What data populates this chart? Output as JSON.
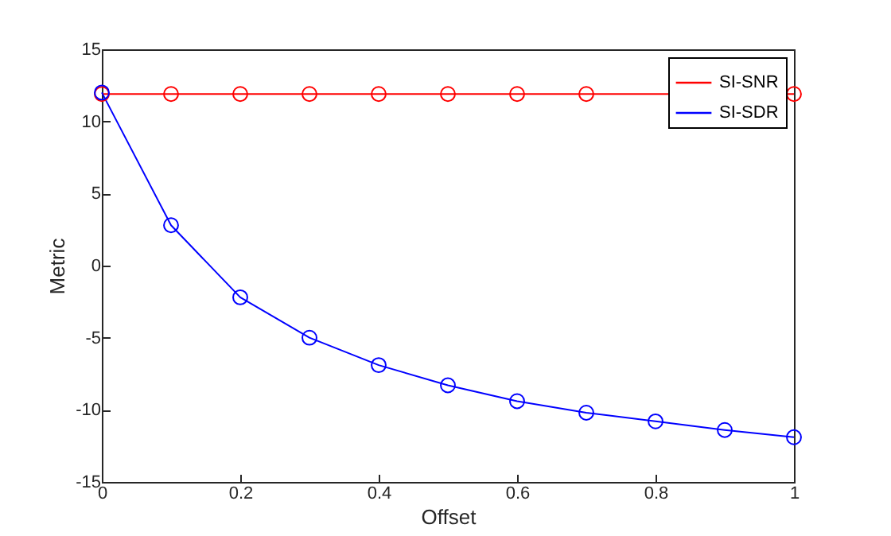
{
  "chart_data": {
    "type": "line",
    "xlabel": "Offset",
    "ylabel": "Metric",
    "x": [
      0,
      0.1,
      0.2,
      0.3,
      0.4,
      0.5,
      0.6,
      0.7,
      0.8,
      0.9,
      1
    ],
    "series": [
      {
        "name": "SI-SNR",
        "color": "#ff0000",
        "values": [
          11.9,
          11.9,
          11.9,
          11.9,
          11.9,
          11.9,
          11.9,
          11.9,
          null,
          null,
          11.9
        ]
      },
      {
        "name": "SI-SDR",
        "color": "#0000ff",
        "values": [
          12.0,
          2.8,
          -2.2,
          -5.0,
          -6.9,
          -8.3,
          -9.4,
          -10.2,
          -10.8,
          -11.4,
          -11.9
        ]
      }
    ],
    "xlim": [
      0,
      1
    ],
    "xticks": [
      0,
      0.2,
      0.4,
      0.6,
      0.8,
      1
    ],
    "ylim": [
      -15,
      15
    ],
    "yticks": [
      -15,
      -10,
      -5,
      0,
      5,
      10,
      15
    ],
    "marker": "circle",
    "legend": "top right",
    "grid": false
  }
}
